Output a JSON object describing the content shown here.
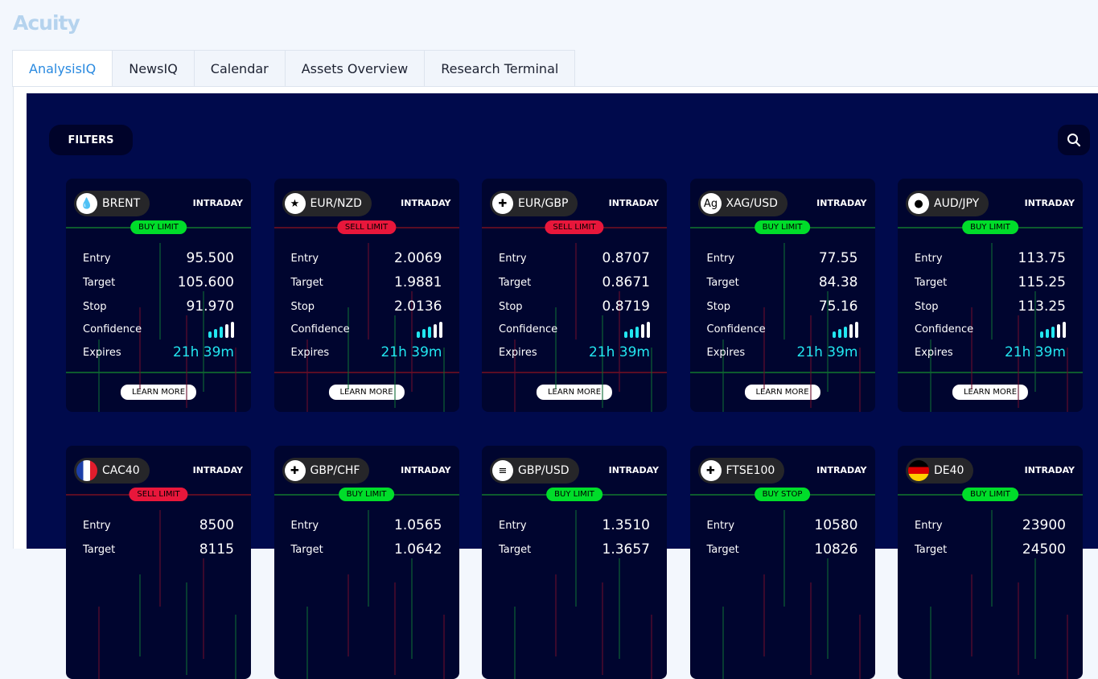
{
  "app": {
    "logo": "Acuity"
  },
  "tabs": [
    {
      "label": "AnalysisIQ",
      "active": true
    },
    {
      "label": "NewsIQ"
    },
    {
      "label": "Calendar"
    },
    {
      "label": "Assets Overview"
    },
    {
      "label": "Research Terminal"
    }
  ],
  "toolbar": {
    "filters_label": "FILTERS",
    "search_icon": "magnifier"
  },
  "labels": {
    "entry": "Entry",
    "target": "Target",
    "stop": "Stop",
    "confidence": "Confidence",
    "expires": "Expires",
    "learn_more": "LEARN MORE"
  },
  "colors": {
    "buy": "#00dd2a",
    "sell": "#e8173b",
    "expires": "#22e6f0",
    "panel": "#000a4c",
    "card": "#00052f"
  },
  "cards": [
    {
      "asset": "BRENT",
      "icon": "oil-drop",
      "term": "INTRADAY",
      "signal": "BUY LIMIT",
      "side": "buy",
      "entry": "95.500",
      "target": "105.600",
      "stop": "91.970",
      "confidence": 3,
      "expires": "21h 39m"
    },
    {
      "asset": "EUR/NZD",
      "icon": "eu-nz-flag",
      "term": "INTRADAY",
      "signal": "SELL LIMIT",
      "side": "sell",
      "entry": "2.0069",
      "target": "1.9881",
      "stop": "2.0136",
      "confidence": 3,
      "expires": "21h 39m"
    },
    {
      "asset": "EUR/GBP",
      "icon": "eu-uk-flag",
      "term": "INTRADAY",
      "signal": "SELL LIMIT",
      "side": "sell",
      "entry": "0.8707",
      "target": "0.8671",
      "stop": "0.8719",
      "confidence": 3,
      "expires": "21h 39m"
    },
    {
      "asset": "XAG/USD",
      "icon": "silver-ag",
      "term": "INTRADAY",
      "signal": "BUY LIMIT",
      "side": "buy",
      "entry": "77.55",
      "target": "84.38",
      "stop": "75.16",
      "confidence": 3,
      "expires": "21h 39m"
    },
    {
      "asset": "AUD/JPY",
      "icon": "au-jp-flag",
      "term": "INTRADAY",
      "signal": "BUY LIMIT",
      "side": "buy",
      "entry": "113.75",
      "target": "115.25",
      "stop": "113.25",
      "confidence": 3,
      "expires": "21h 39m"
    },
    {
      "asset": "CAC40",
      "icon": "france-flag",
      "term": "INTRADAY",
      "signal": "SELL LIMIT",
      "side": "sell",
      "entry": "8500",
      "target": "8115"
    },
    {
      "asset": "GBP/CHF",
      "icon": "uk-ch-flag",
      "term": "INTRADAY",
      "signal": "BUY LIMIT",
      "side": "buy",
      "entry": "1.0565",
      "target": "1.0642"
    },
    {
      "asset": "GBP/USD",
      "icon": "uk-us-flag",
      "term": "INTRADAY",
      "signal": "BUY LIMIT",
      "side": "buy",
      "entry": "1.3510",
      "target": "1.3657"
    },
    {
      "asset": "FTSE100",
      "icon": "uk-flag",
      "term": "INTRADAY",
      "signal": "BUY STOP",
      "side": "buy",
      "entry": "10580",
      "target": "10826"
    },
    {
      "asset": "DE40",
      "icon": "germany-flag",
      "term": "INTRADAY",
      "signal": "BUY LIMIT",
      "side": "buy",
      "entry": "23900",
      "target": "24500"
    }
  ]
}
